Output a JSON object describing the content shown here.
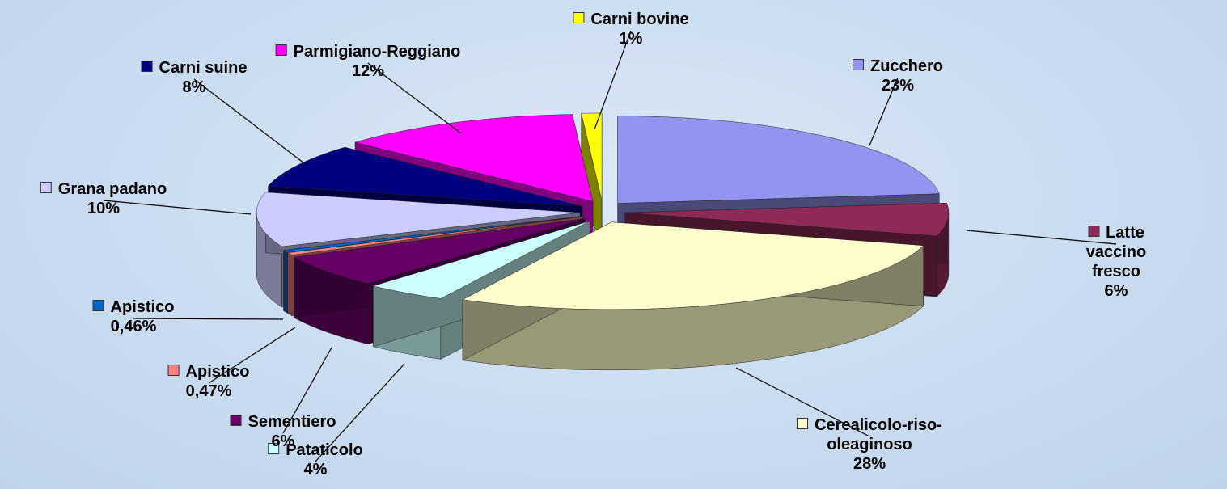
{
  "chart_data": {
    "type": "pie",
    "categories": [
      "Zucchero",
      "Latte vaccino fresco",
      "Cerealicolo-riso-oleaginoso",
      "Pataticolo",
      "Sementiero",
      "Apistico",
      "Apistico",
      "Grana padano",
      "Carni suine",
      "Parmigiano-Reggiano",
      "Carni bovine"
    ],
    "values": [
      23,
      6,
      28,
      4,
      6,
      0.47,
      0.46,
      10,
      8,
      12,
      1
    ],
    "value_labels": [
      "23%",
      "6%",
      "28%",
      "4%",
      "6%",
      "0,47%",
      "0,46%",
      "10%",
      "8%",
      "12%",
      "1%"
    ],
    "colors": [
      "#9393f0",
      "#8e2a58",
      "#ffffcc",
      "#ccffff",
      "#660066",
      "#ff8080",
      "#0066cc",
      "#ccccff",
      "#000080",
      "#ff00ff",
      "#ffff00"
    ]
  }
}
